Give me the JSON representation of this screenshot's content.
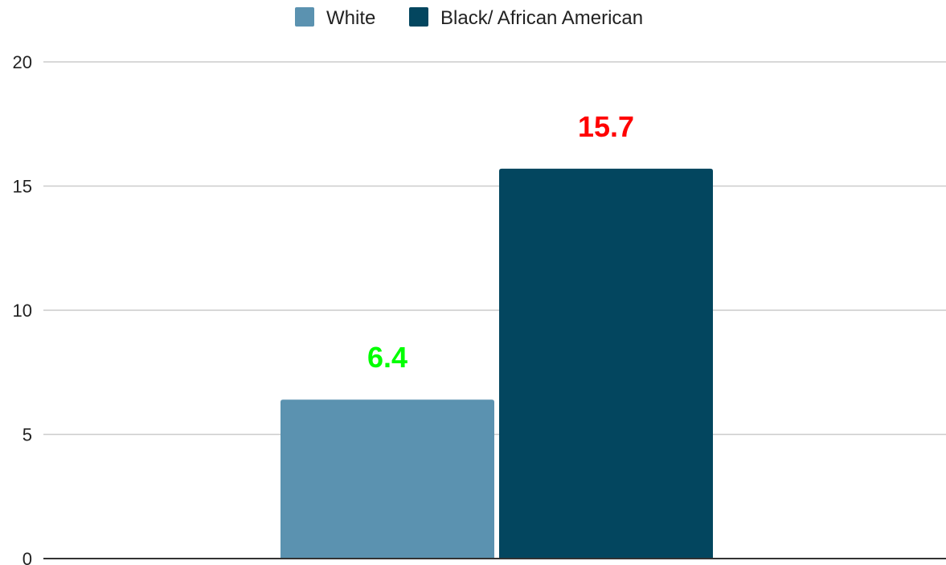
{
  "chart_data": {
    "type": "bar",
    "categories": [
      ""
    ],
    "series": [
      {
        "name": "White",
        "values": [
          6.4
        ],
        "color": "#5B92B0",
        "label_color": "#00FF00"
      },
      {
        "name": "Black/ African American",
        "values": [
          15.7
        ],
        "color": "#03465F",
        "label_color": "#FF0000"
      }
    ],
    "data_labels": [
      "6.4",
      "15.7"
    ],
    "title": "",
    "xlabel": "",
    "ylabel": "",
    "ylim": [
      0,
      20
    ],
    "yticks": [
      0,
      5,
      10,
      15,
      20
    ],
    "ytick_labels": [
      "0",
      "5",
      "10",
      "15",
      "20"
    ],
    "grid": true,
    "legend": "top-center"
  }
}
